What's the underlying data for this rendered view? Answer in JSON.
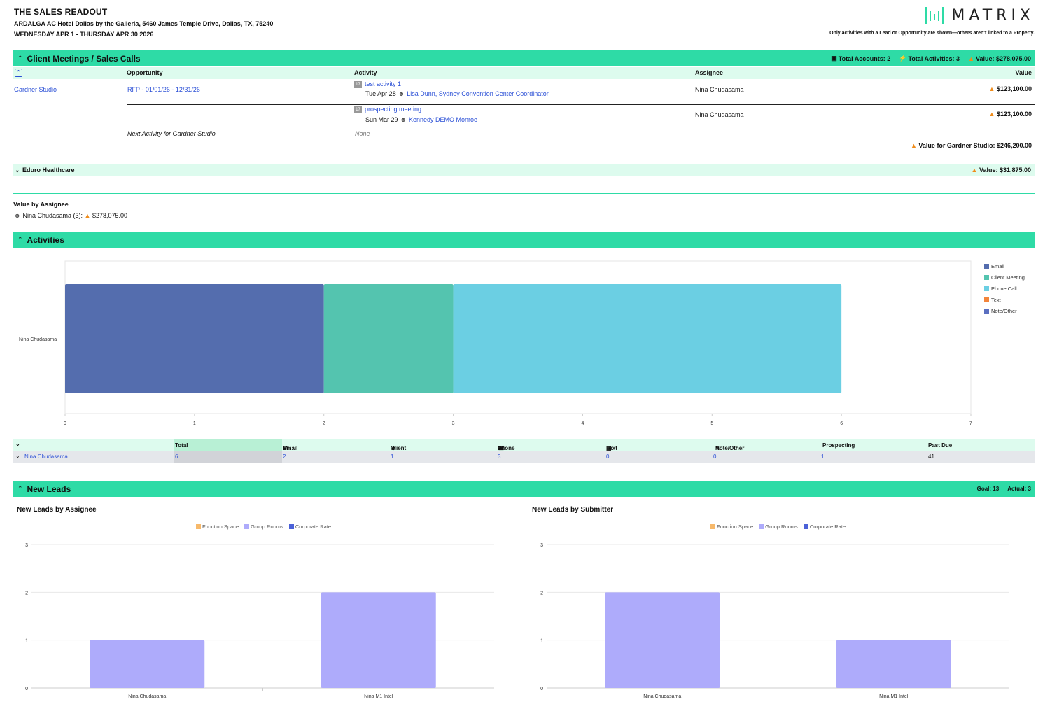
{
  "header": {
    "title": "THE SALES READOUT",
    "hotel": "ARDALGA AC Hotel Dallas by the Galleria, 5460 James Temple Drive, Dallas, TX, 75240",
    "dates": "WEDNESDAY APR 1 - THURSDAY APR 30 2026",
    "logo_text": "MATRIX",
    "disclaimer": "Only activities with a Lead or Opportunity are shown—others aren't linked to a Property."
  },
  "meetings": {
    "title": "Client Meetings / Sales Calls",
    "total_accounts": "Total Accounts: 2",
    "total_activities": "Total Activities: 3",
    "value": "Value: $278,075.00",
    "columns": {
      "opportunity": "Opportunity",
      "activity": "Activity",
      "assignee": "Assignee",
      "value": "Value"
    },
    "account": "Gardner Studio",
    "opportunity": "RFP - 01/01/26 - 12/31/26",
    "rows": [
      {
        "activity": "test activity 1",
        "date": "Tue Apr 28",
        "contact": "Lisa Dunn, Sydney Convention Center Coordinator",
        "assignee": "Nina Chudasama",
        "value": "$123,100.00"
      },
      {
        "activity": "prospecting meeting",
        "date": "Sun Mar 29",
        "contact": "Kennedy DEMO Monroe",
        "assignee": "Nina Chudasama",
        "value": "$123,100.00"
      }
    ],
    "next_activity_label": "Next Activity for Gardner Studio",
    "next_activity_value": "None",
    "account_total": "Value for Gardner Studio: $246,200.00",
    "second_account": "Eduro Healthcare",
    "second_account_value": "Value:  $31,875.00"
  },
  "value_by_assignee": {
    "title": "Value by Assignee",
    "entry_name": "Nina Chudasama (3):",
    "entry_value": "$278,075.00"
  },
  "activities": {
    "title": "Activities",
    "legend": [
      "Email",
      "Client Meeting",
      "Phone Call",
      "Text",
      "Note/Other"
    ],
    "table_headers": [
      "Total",
      "Email",
      "Client Meeting",
      "Phone Call",
      "Text",
      "Note/Other",
      "Prospecting",
      "Past Due"
    ],
    "row": {
      "name": "Nina Chudasama",
      "values": [
        "6",
        "2",
        "1",
        "3",
        "0",
        "0",
        "1",
        "41"
      ]
    }
  },
  "leads": {
    "title": "New Leads",
    "goal": "Goal:  13",
    "actual": "Actual:  3",
    "by_assignee_title": "New Leads by Assignee",
    "by_submitter_title": "New Leads by Submitter",
    "legend": [
      "Function Space",
      "Group Rooms",
      "Corporate Rate"
    ]
  },
  "colors": {
    "accent": "#2edba6",
    "light_accent": "#ddfbee",
    "email": "#546dae",
    "client_meeting": "#54c4af",
    "phone_call": "#6bcfe3",
    "text": "#f3853b",
    "note_other": "#5b6fc0",
    "function_space": "#f7b96b",
    "group_rooms": "#aeabfb",
    "corporate_rate": "#4b61d8"
  },
  "chart_data": [
    {
      "type": "bar",
      "orientation": "horizontal",
      "stacked": true,
      "categories": [
        "Nina Chudasama"
      ],
      "series": [
        {
          "name": "Email",
          "values": [
            2
          ]
        },
        {
          "name": "Client Meeting",
          "values": [
            1
          ]
        },
        {
          "name": "Phone Call",
          "values": [
            3
          ]
        },
        {
          "name": "Text",
          "values": [
            0
          ]
        },
        {
          "name": "Note/Other",
          "values": [
            0
          ]
        }
      ],
      "xlim": [
        0,
        7
      ],
      "xticks": [
        "0",
        "1",
        "2",
        "3",
        "4",
        "5",
        "6",
        "7"
      ],
      "legend": "right"
    },
    {
      "type": "bar",
      "title": "New Leads by Assignee",
      "categories": [
        "Nina Chudasama",
        "Nina M1 Intel"
      ],
      "series": [
        {
          "name": "Function Space",
          "values": [
            0,
            0
          ]
        },
        {
          "name": "Group Rooms",
          "values": [
            1,
            2
          ]
        },
        {
          "name": "Corporate Rate",
          "values": [
            0,
            0
          ]
        }
      ],
      "ylim": [
        0,
        3
      ],
      "yticks": [
        "0",
        "1",
        "2",
        "3"
      ],
      "legend": "top"
    },
    {
      "type": "bar",
      "title": "New Leads by Submitter",
      "categories": [
        "Nina Chudasama",
        "Nina M1 Intel"
      ],
      "series": [
        {
          "name": "Function Space",
          "values": [
            0,
            0
          ]
        },
        {
          "name": "Group Rooms",
          "values": [
            2,
            1
          ]
        },
        {
          "name": "Corporate Rate",
          "values": [
            0,
            0
          ]
        }
      ],
      "ylim": [
        0,
        3
      ],
      "yticks": [
        "0",
        "1",
        "2",
        "3"
      ],
      "legend": "top"
    }
  ]
}
